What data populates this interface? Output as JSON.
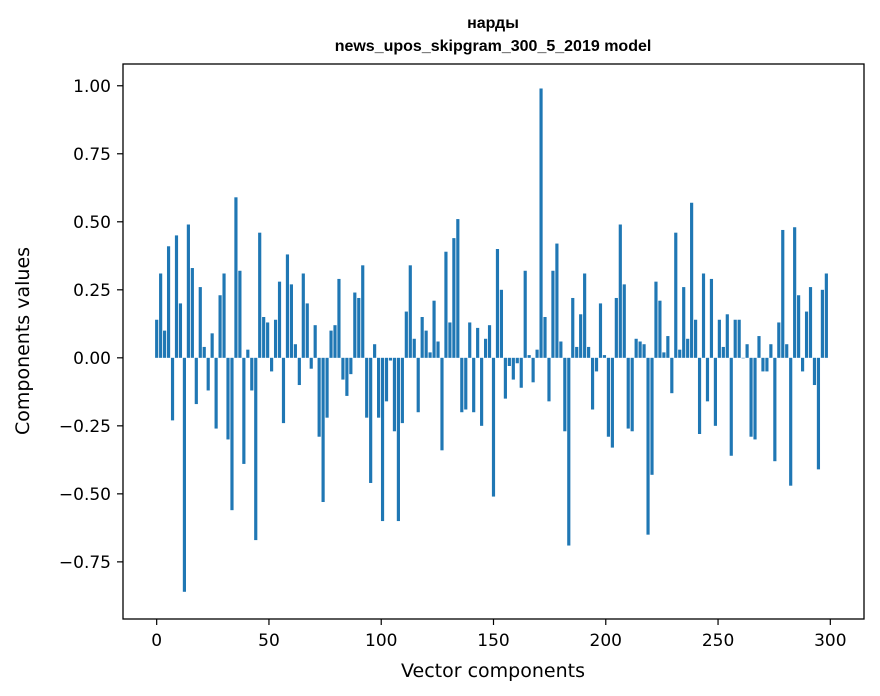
{
  "chart_data": {
    "type": "bar",
    "title": "нарды",
    "subtitle": "news_upos_skipgram_300_5_2019 model",
    "xlabel": "Vector components",
    "ylabel": "Components values",
    "xlim": [
      -15,
      315
    ],
    "ylim": [
      -0.96,
      1.08
    ],
    "xticks": [
      0,
      50,
      100,
      150,
      200,
      250,
      300
    ],
    "xtick_labels": [
      "0",
      "50",
      "100",
      "150",
      "200",
      "250",
      "300"
    ],
    "yticks": [
      1.0,
      0.75,
      0.5,
      0.25,
      0.0,
      -0.25,
      -0.5,
      -0.75
    ],
    "ytick_labels": [
      "1.00",
      "0.75",
      "0.50",
      "0.25",
      "0.00",
      "−0.25",
      "−0.50",
      "−0.75"
    ],
    "grid": false,
    "bar_color": "#1f77b4",
    "values": [
      0.14,
      0.31,
      0.1,
      0.41,
      -0.23,
      0.45,
      0.2,
      -0.86,
      0.49,
      0.33,
      -0.17,
      0.26,
      0.04,
      -0.12,
      0.09,
      -0.26,
      0.23,
      0.31,
      -0.3,
      -0.56,
      0.59,
      0.32,
      -0.39,
      0.03,
      -0.12,
      -0.67,
      0.46,
      0.15,
      0.13,
      -0.05,
      0.14,
      0.28,
      -0.24,
      0.38,
      0.27,
      0.05,
      -0.1,
      0.31,
      0.2,
      -0.04,
      0.12,
      -0.29,
      -0.53,
      -0.22,
      0.1,
      0.12,
      0.29,
      -0.08,
      -0.14,
      -0.06,
      0.24,
      0.22,
      0.34,
      -0.22,
      -0.46,
      0.05,
      -0.22,
      -0.6,
      -0.16,
      -0.01,
      -0.27,
      -0.6,
      -0.24,
      0.17,
      0.34,
      0.07,
      -0.2,
      0.15,
      0.1,
      0.02,
      0.21,
      0.06,
      -0.34,
      0.39,
      0.13,
      0.44,
      0.51,
      -0.2,
      -0.19,
      0.13,
      -0.2,
      0.11,
      -0.25,
      0.07,
      0.12,
      -0.51,
      0.4,
      0.25,
      -0.15,
      -0.03,
      -0.08,
      -0.02,
      -0.11,
      0.32,
      0.01,
      -0.09,
      0.03,
      0.99,
      0.15,
      -0.16,
      0.32,
      0.42,
      0.06,
      -0.27,
      -0.69,
      0.22,
      0.04,
      0.16,
      0.31,
      0.04,
      -0.19,
      -0.05,
      0.2,
      0.01,
      -0.29,
      -0.33,
      0.22,
      0.49,
      0.27,
      -0.26,
      -0.27,
      0.07,
      0.06,
      0.05,
      -0.65,
      -0.43,
      0.28,
      0.21,
      0.02,
      0.08,
      -0.13,
      0.46,
      0.03,
      0.26,
      0.07,
      0.57,
      0.14,
      -0.28,
      0.31,
      -0.16,
      0.29,
      -0.25,
      0.14,
      0.04,
      0.16,
      -0.36,
      0.14,
      0.14,
      0.0,
      0.05,
      -0.29,
      -0.3,
      0.08,
      -0.05,
      -0.05,
      0.05,
      -0.38,
      0.13,
      0.47,
      0.05,
      -0.47,
      0.48,
      0.23,
      -0.05,
      0.17,
      0.26,
      -0.1,
      -0.41,
      0.25,
      0.31
    ]
  }
}
